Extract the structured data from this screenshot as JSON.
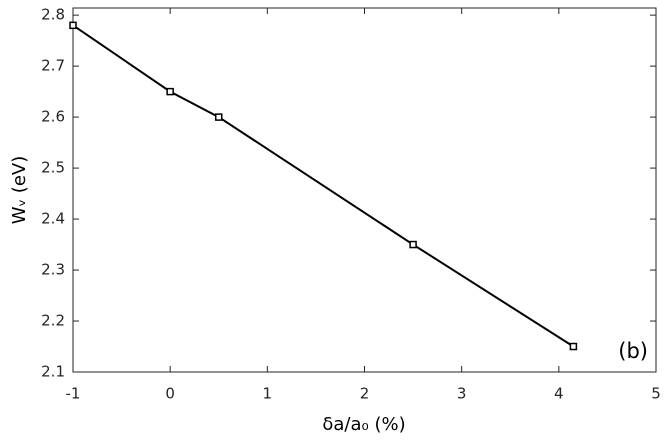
{
  "chart_data": {
    "type": "line",
    "x": [
      -1,
      0,
      0.5,
      2.5,
      4.15
    ],
    "series": [
      {
        "color": "#000000",
        "values": [
          2.78,
          2.65,
          2.6,
          2.35,
          2.15
        ]
      }
    ],
    "xlim": [
      -1,
      5
    ],
    "xticks": [
      -1,
      0,
      1,
      2,
      3,
      4,
      5
    ],
    "ylim": [
      2.1,
      2.814
    ],
    "yticks": [
      2.1,
      2.2,
      2.3,
      2.4,
      2.5,
      2.6,
      2.7,
      2.8
    ],
    "x_label": "δa/a₀ (%)",
    "y_label": "Wᵥ (eV)",
    "annotation": "(b)",
    "grid": false
  }
}
